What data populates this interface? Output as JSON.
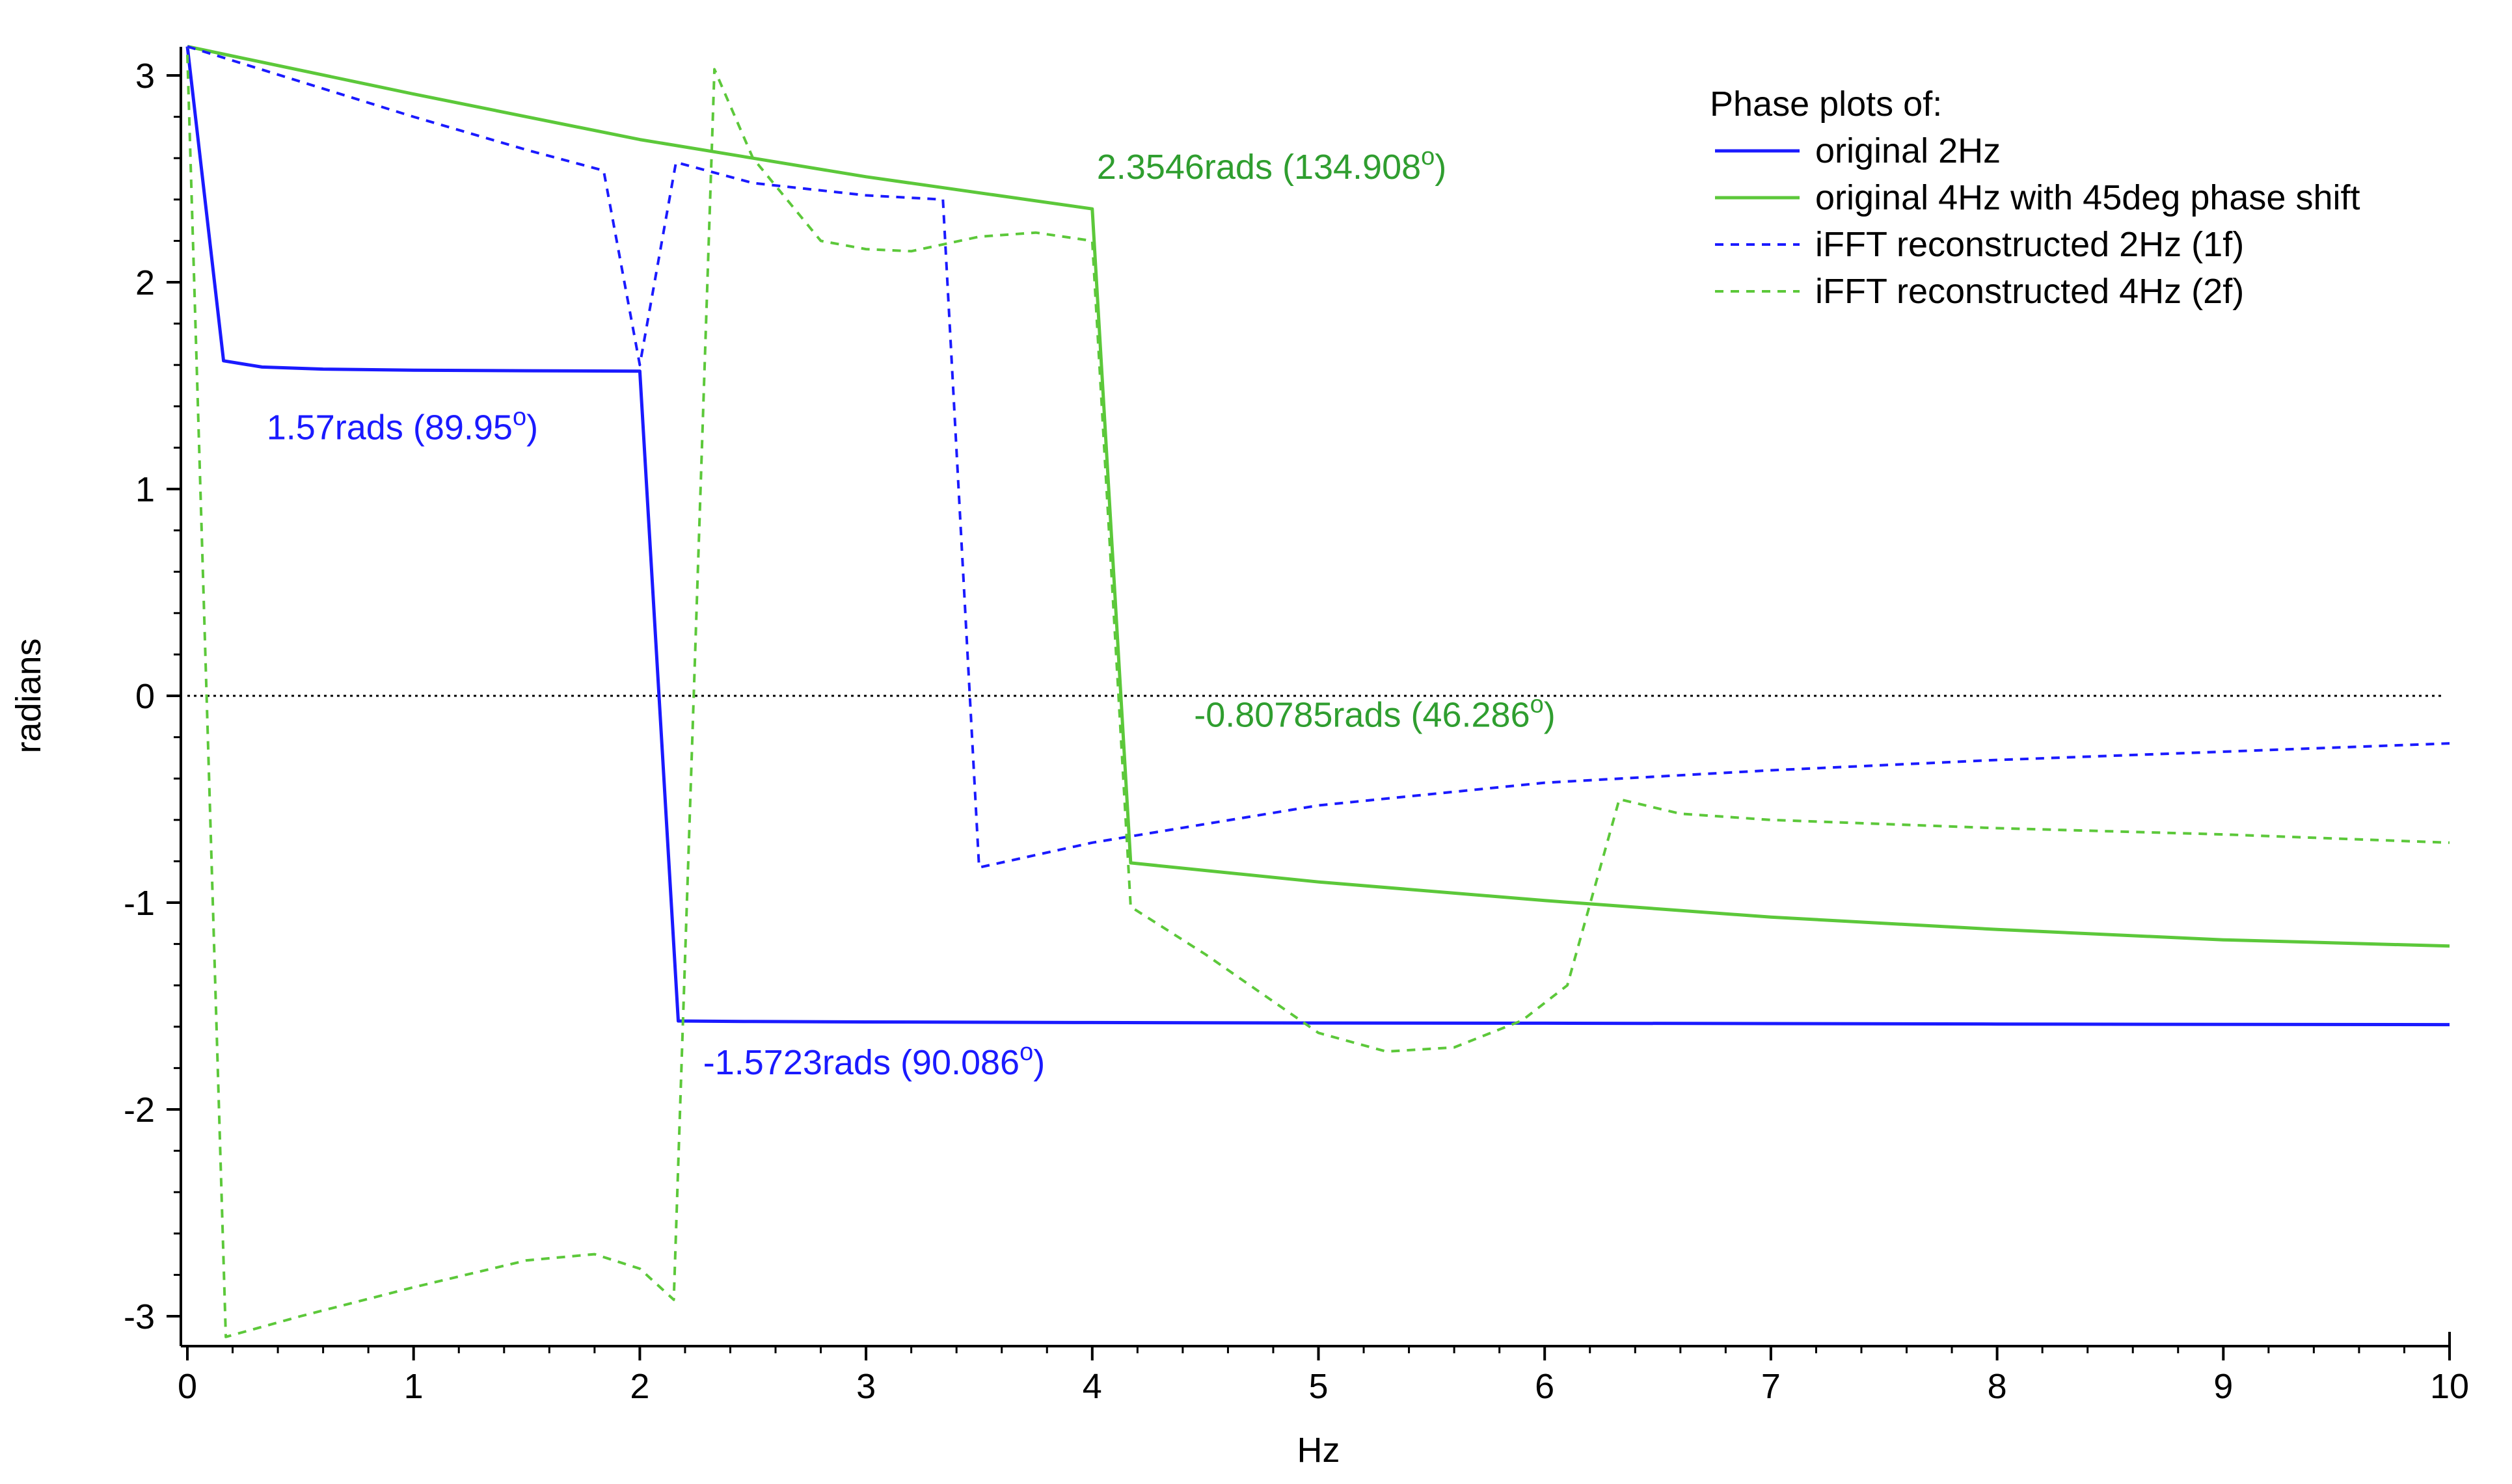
{
  "chart_data": {
    "type": "line",
    "xlabel": "Hz",
    "ylabel": "radians",
    "xlim": [
      0,
      10
    ],
    "ylim": [
      -3.15,
      3.15
    ],
    "x_ticks": [
      0,
      1,
      2,
      3,
      4,
      5,
      6,
      7,
      8,
      9,
      10
    ],
    "y_ticks": [
      -3,
      -2,
      -1,
      0,
      1,
      2,
      3
    ],
    "grid": false,
    "legend": {
      "position": "top-right",
      "title": "Phase plots of:",
      "entries": [
        {
          "label": "original 2Hz",
          "color": "#1a1aff",
          "dash": "solid"
        },
        {
          "label": "original 4Hz with 45deg phase shift",
          "color": "#5cc83a",
          "dash": "solid"
        },
        {
          "label": "iFFT reconstructed 2Hz (1f)",
          "color": "#1a1aff",
          "dash": "dashed"
        },
        {
          "label": "iFFT reconstructed 4Hz (2f)",
          "color": "#5cc83a",
          "dash": "dashed"
        }
      ]
    },
    "zero_line": {
      "y": 0,
      "style": "dotted",
      "color": "#000000",
      "x_range": [
        0,
        9.97
      ]
    },
    "series": [
      {
        "name": "original 2Hz",
        "color": "#1a1aff",
        "dash": "solid",
        "x": [
          0,
          0.16,
          0.33,
          0.6,
          1.0,
          1.5,
          2.0,
          2.17,
          2.5,
          3,
          4,
          5,
          6,
          7,
          8,
          9,
          10
        ],
        "y": [
          3.14,
          1.62,
          1.59,
          1.58,
          1.575,
          1.572,
          1.57,
          -1.5723,
          -1.575,
          -1.577,
          -1.58,
          -1.582,
          -1.583,
          -1.585,
          -1.587,
          -1.589,
          -1.59
        ]
      },
      {
        "name": "original 4Hz with 45deg phase shift",
        "color": "#5cc83a",
        "dash": "solid",
        "x": [
          0,
          1,
          2,
          3,
          4,
          4.17,
          5,
          6,
          7,
          8,
          9,
          10
        ],
        "y": [
          3.14,
          2.91,
          2.69,
          2.51,
          2.3546,
          -0.80785,
          -0.9,
          -0.99,
          -1.07,
          -1.13,
          -1.18,
          -1.21
        ]
      },
      {
        "name": "iFFT reconstructed 2Hz (1f)",
        "color": "#1a1aff",
        "dash": "dashed",
        "x": [
          0,
          0.5,
          1,
          1.5,
          1.84,
          2.0,
          2.16,
          2.5,
          3.0,
          3.34,
          3.5,
          4,
          5,
          6,
          7,
          8,
          9,
          10
        ],
        "y": [
          3.14,
          2.97,
          2.8,
          2.64,
          2.54,
          1.6,
          2.58,
          2.48,
          2.42,
          2.4,
          -0.83,
          -0.71,
          -0.53,
          -0.42,
          -0.36,
          -0.31,
          -0.27,
          -0.23
        ]
      },
      {
        "name": "iFFT reconstructed 4Hz (2f)",
        "color": "#5cc83a",
        "dash": "dashed",
        "x": [
          0,
          0.17,
          0.5,
          1.0,
          1.5,
          1.8,
          2.0,
          2.15,
          2.33,
          2.5,
          2.8,
          3.0,
          3.2,
          3.5,
          3.75,
          4.0,
          4.17,
          4.5,
          5.0,
          5.3,
          5.6,
          5.9,
          6.1,
          6.33,
          6.6,
          7,
          8,
          9,
          10
        ],
        "y": [
          3.1,
          -3.1,
          -3.0,
          -2.86,
          -2.73,
          -2.7,
          -2.77,
          -2.92,
          3.03,
          2.6,
          2.2,
          2.16,
          2.15,
          2.22,
          2.24,
          2.2,
          -1.02,
          -1.25,
          -1.63,
          -1.72,
          -1.7,
          -1.57,
          -1.4,
          -0.5,
          -0.57,
          -0.6,
          -0.64,
          -0.67,
          -0.71
        ]
      }
    ],
    "annotations": [
      {
        "text": "1.57rads (89.95",
        "sup": "o",
        "close": ")",
        "x": 0.35,
        "y": 1.24,
        "color": "#1a1aff"
      },
      {
        "text": "2.3546rads (134.908",
        "sup": "o",
        "close": ")",
        "x": 4.02,
        "y": 2.5,
        "color": "#2f9e2f"
      },
      {
        "text": "-0.80785rads (46.286",
        "sup": "o",
        "close": ")",
        "x": 4.45,
        "y": -0.15,
        "color": "#2f9e2f"
      },
      {
        "text": "-1.5723rads (90.086",
        "sup": "o",
        "close": ")",
        "x": 2.28,
        "y": -1.83,
        "color": "#1a1aff"
      }
    ]
  }
}
